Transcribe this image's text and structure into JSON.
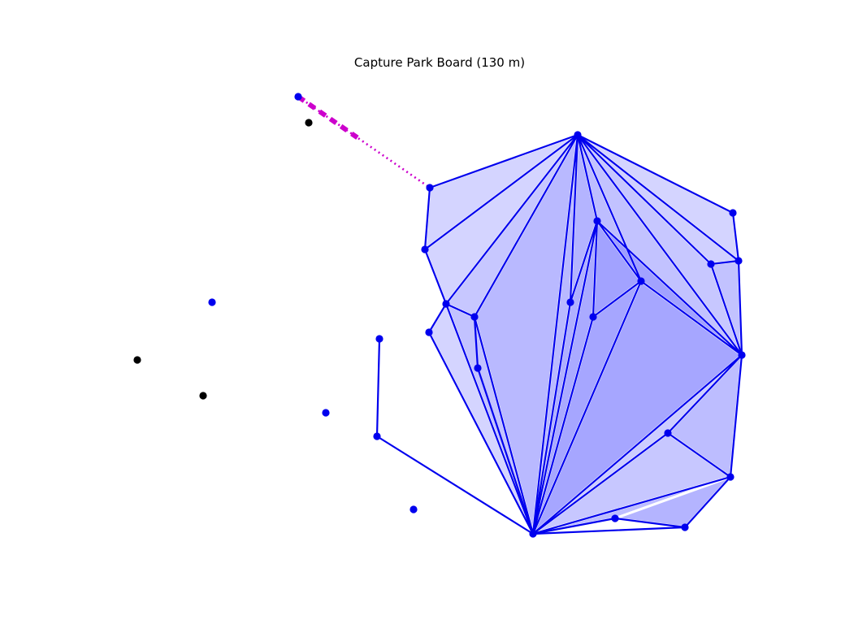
{
  "title": "Capture Park Board (130 m)",
  "colors": {
    "player": "#0000ee",
    "neutral": "#000000",
    "move": "#cc00cc",
    "fill": "#5555ff",
    "background": "#ffffff"
  },
  "pieces": {
    "blue": [
      "b1",
      "b2",
      "b3",
      "b4",
      "b5",
      "b6",
      "b7",
      "b8",
      "b9",
      "b10",
      "b11",
      "b12",
      "b13",
      "b14",
      "b15",
      "b16",
      "b17",
      "b18",
      "b19",
      "b20",
      "b21",
      "b22",
      "b23",
      "b24",
      "b25",
      "b26"
    ],
    "black": [
      "k1",
      "k2",
      "k3"
    ]
  },
  "last_move": {
    "from": "b1",
    "to": "b2",
    "style": "dotted"
  }
}
